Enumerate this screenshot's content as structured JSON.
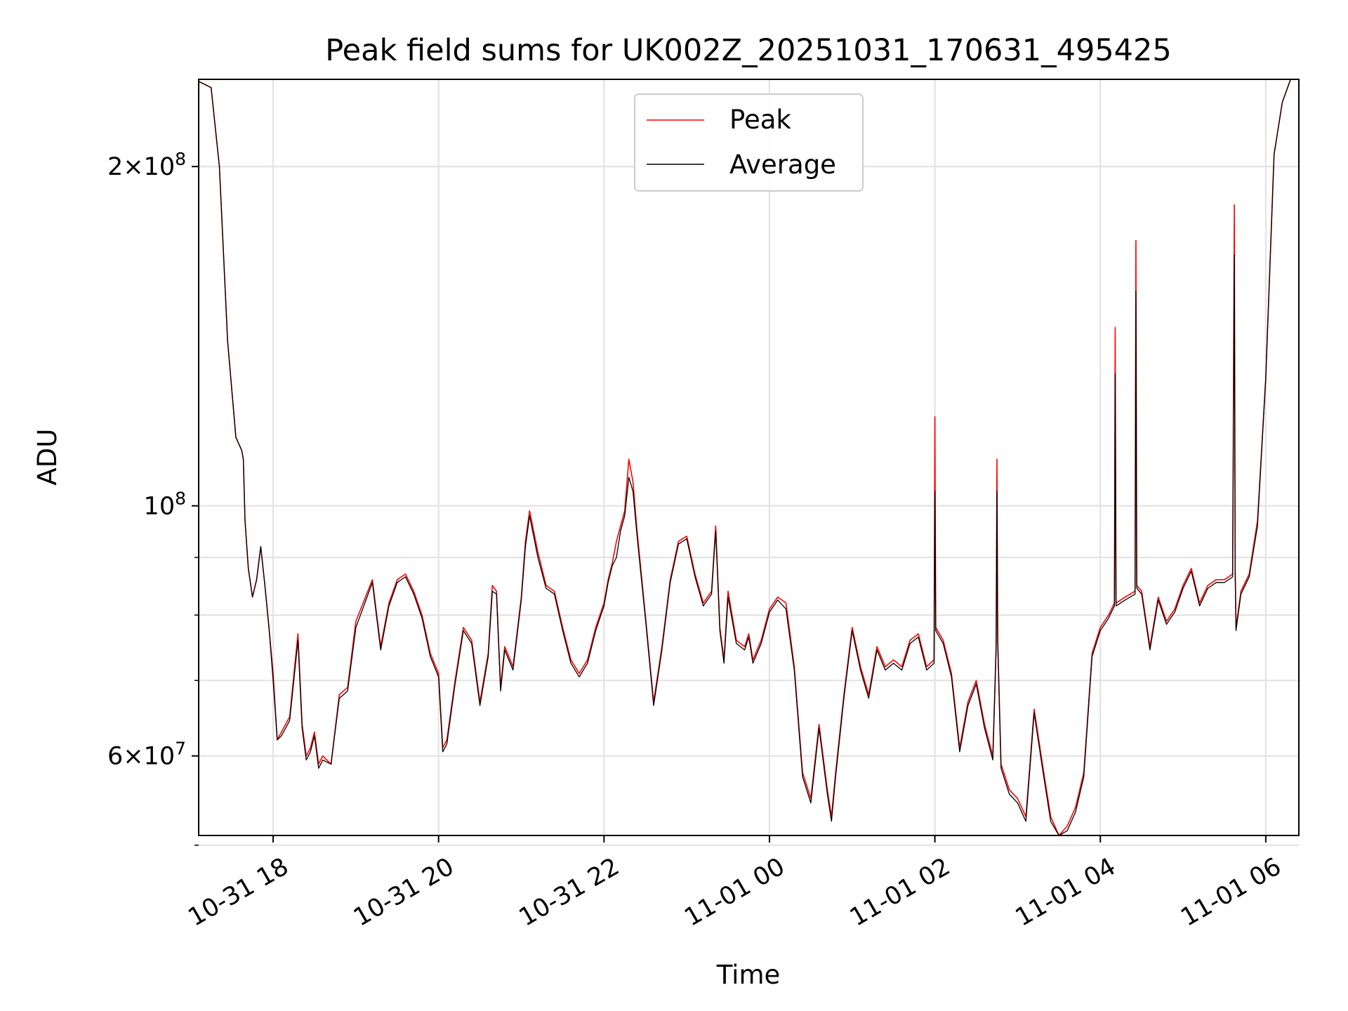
{
  "chart_data": {
    "type": "line",
    "title": "Peak field sums for UK002Z_20251031_170631_495425",
    "xlabel": "Time",
    "ylabel": "ADU",
    "yscale": "log",
    "ylim": [
      51000000,
      239000000
    ],
    "xlim_hours": [
      -0.9,
      12.4
    ],
    "grid": true,
    "legend_position": "top-center",
    "x_ticks": [
      {
        "hour": 0,
        "label": "10-31 18"
      },
      {
        "hour": 2,
        "label": "10-31 20"
      },
      {
        "hour": 4,
        "label": "10-31 22"
      },
      {
        "hour": 6,
        "label": "11-01 00"
      },
      {
        "hour": 8,
        "label": "11-01 02"
      },
      {
        "hour": 10,
        "label": "11-01 04"
      },
      {
        "hour": 12,
        "label": "11-01 06"
      }
    ],
    "y_major_ticks": [
      {
        "value": 60000000,
        "mantissa": "6",
        "exponent": "7"
      },
      {
        "value": 100000000,
        "mantissa": "",
        "exponent": "8"
      },
      {
        "value": 200000000,
        "mantissa": "2",
        "exponent": "8"
      }
    ],
    "y_minor_ticks": [
      50000000,
      70000000,
      80000000,
      90000000
    ],
    "x_hours": [
      -0.9,
      -0.75,
      -0.65,
      -0.55,
      -0.45,
      -0.38,
      -0.36,
      -0.34,
      -0.3,
      -0.25,
      -0.2,
      -0.15,
      -0.1,
      -0.05,
      0,
      0.05,
      0.1,
      0.2,
      0.3,
      0.35,
      0.4,
      0.45,
      0.5,
      0.55,
      0.6,
      0.7,
      0.8,
      0.9,
      1.0,
      1.2,
      1.3,
      1.4,
      1.5,
      1.6,
      1.7,
      1.8,
      1.9,
      2.0,
      2.05,
      2.1,
      2.2,
      2.3,
      2.4,
      2.5,
      2.6,
      2.65,
      2.7,
      2.75,
      2.8,
      2.9,
      3.0,
      3.05,
      3.1,
      3.2,
      3.3,
      3.4,
      3.5,
      3.6,
      3.7,
      3.8,
      3.9,
      4.0,
      4.05,
      4.1,
      4.15,
      4.2,
      4.25,
      4.3,
      4.35,
      4.4,
      4.5,
      4.6,
      4.7,
      4.8,
      4.9,
      5.0,
      5.1,
      5.2,
      5.3,
      5.35,
      5.4,
      5.45,
      5.5,
      5.6,
      5.7,
      5.75,
      5.8,
      5.9,
      6.0,
      6.1,
      6.2,
      6.3,
      6.4,
      6.5,
      6.6,
      6.7,
      6.75,
      6.8,
      6.9,
      7.0,
      7.1,
      7.2,
      7.3,
      7.4,
      7.5,
      7.6,
      7.7,
      7.8,
      7.9,
      7.99,
      8.0,
      8.01,
      8.1,
      8.2,
      8.3,
      8.4,
      8.5,
      8.6,
      8.7,
      8.74,
      8.75,
      8.76,
      8.8,
      8.9,
      9.0,
      9.1,
      9.2,
      9.3,
      9.4,
      9.5,
      9.6,
      9.7,
      9.8,
      9.9,
      10.0,
      10.1,
      10.17,
      10.18,
      10.19,
      10.3,
      10.42,
      10.43,
      10.44,
      10.5,
      10.6,
      10.7,
      10.8,
      10.9,
      11.0,
      11.1,
      11.2,
      11.3,
      11.4,
      11.5,
      11.6,
      11.62,
      11.63,
      11.64,
      11.7,
      11.8,
      11.9,
      12.0,
      12.1,
      12.2,
      12.3,
      12.4
    ],
    "series": [
      {
        "name": "Peak",
        "color": "#ff0000",
        "values": [
          238000000,
          235000000,
          200000000,
          140000000,
          115000000,
          112000000,
          110000000,
          97000000,
          88000000,
          83000000,
          86000000,
          92000000,
          85000000,
          78000000,
          71000000,
          62000000,
          63000000,
          65000000,
          77000000,
          64000000,
          60000000,
          61000000,
          63000000,
          59000000,
          60000000,
          59000000,
          68000000,
          69000000,
          79000000,
          86000000,
          75000000,
          82000000,
          86000000,
          87000000,
          84000000,
          80000000,
          74000000,
          71000000,
          61000000,
          62000000,
          70000000,
          78000000,
          76000000,
          67000000,
          74000000,
          85000000,
          84000000,
          69000000,
          75000000,
          72000000,
          83000000,
          93000000,
          99000000,
          91000000,
          85000000,
          84000000,
          78000000,
          73000000,
          71000000,
          73000000,
          78000000,
          82000000,
          86000000,
          89000000,
          93000000,
          96000000,
          99000000,
          110000000,
          105000000,
          95000000,
          80000000,
          67000000,
          75000000,
          86000000,
          93000000,
          94000000,
          87000000,
          82000000,
          84000000,
          96000000,
          78000000,
          73000000,
          84000000,
          76000000,
          75000000,
          77000000,
          73000000,
          76000000,
          81000000,
          83000000,
          82000000,
          72000000,
          58000000,
          55000000,
          64000000,
          56000000,
          53000000,
          58000000,
          68000000,
          78000000,
          72000000,
          68000000,
          75000000,
          72000000,
          73000000,
          72000000,
          76000000,
          77000000,
          72000000,
          73000000,
          120000000,
          78000000,
          76000000,
          71000000,
          61000000,
          67000000,
          70000000,
          64000000,
          60000000,
          75000000,
          110000000,
          76000000,
          59000000,
          56000000,
          55000000,
          53000000,
          66000000,
          59000000,
          53000000,
          51000000,
          52000000,
          54000000,
          58000000,
          74000000,
          78000000,
          80000000,
          82000000,
          144000000,
          82000000,
          83000000,
          84000000,
          172000000,
          85000000,
          84000000,
          75000000,
          83000000,
          79000000,
          81000000,
          85000000,
          88000000,
          82000000,
          85000000,
          86000000,
          86000000,
          87000000,
          185000000,
          88000000,
          78000000,
          84000000,
          87000000,
          97000000,
          130000000,
          205000000,
          228000000,
          239000000
        ]
      },
      {
        "name": "Average",
        "color": "#000000",
        "values": [
          238000000,
          235000000,
          200000000,
          140000000,
          115000000,
          112000000,
          110000000,
          97000000,
          88000000,
          83000000,
          86000000,
          92000000,
          85000000,
          78000000,
          70000000,
          62000000,
          62500000,
          64500000,
          76000000,
          63500000,
          59500000,
          60500000,
          62500000,
          58500000,
          59500000,
          59000000,
          67500000,
          68500000,
          78000000,
          85500000,
          74500000,
          81500000,
          85500000,
          86500000,
          83500000,
          79500000,
          73500000,
          70500000,
          60500000,
          61500000,
          69500000,
          77500000,
          75500000,
          66500000,
          73500000,
          84000000,
          83500000,
          68500000,
          74500000,
          71500000,
          82500000,
          92000000,
          98000000,
          90000000,
          84500000,
          83500000,
          77500000,
          72500000,
          70500000,
          72500000,
          77500000,
          81500000,
          85500000,
          88500000,
          90000000,
          95000000,
          98000000,
          106000000,
          103000000,
          94000000,
          79500000,
          66500000,
          74500000,
          85500000,
          92500000,
          93500000,
          86500000,
          81500000,
          83500000,
          95000000,
          77500000,
          72500000,
          83000000,
          75500000,
          74500000,
          76500000,
          72500000,
          75500000,
          80500000,
          82500000,
          81000000,
          71500000,
          57500000,
          54500000,
          63500000,
          55500000,
          52500000,
          57500000,
          67500000,
          77500000,
          71500000,
          67500000,
          74500000,
          71500000,
          72500000,
          71500000,
          75500000,
          76500000,
          71500000,
          72500000,
          103000000,
          77500000,
          75500000,
          70500000,
          60500000,
          66500000,
          69500000,
          63500000,
          59500000,
          74500000,
          103000000,
          75500000,
          58500000,
          55500000,
          54500000,
          52500000,
          65500000,
          58500000,
          52500000,
          50800000,
          51500000,
          53500000,
          57500000,
          73500000,
          77500000,
          79500000,
          81500000,
          131000000,
          81500000,
          82500000,
          83500000,
          155000000,
          84500000,
          83500000,
          74500000,
          82500000,
          78500000,
          80500000,
          84500000,
          87500000,
          81500000,
          84500000,
          85500000,
          85500000,
          86500000,
          167000000,
          87500000,
          77500000,
          83500000,
          86500000,
          96000000,
          130000000,
          205000000,
          228000000,
          239000000
        ]
      }
    ]
  }
}
